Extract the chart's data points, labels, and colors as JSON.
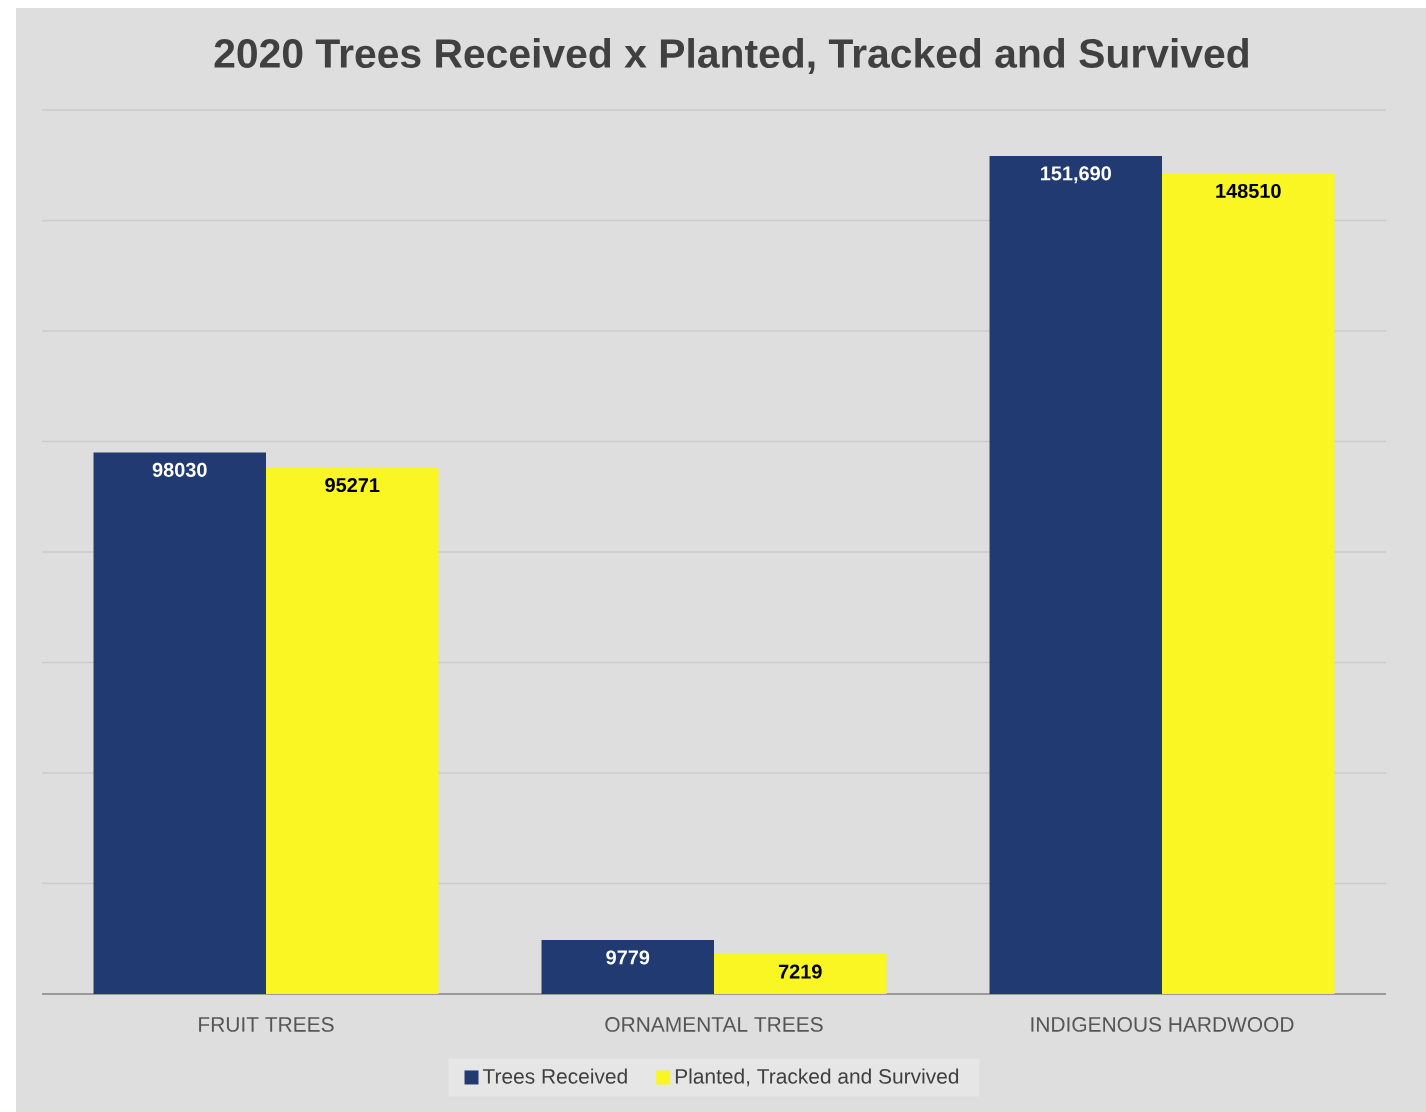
{
  "chart_data": {
    "type": "bar",
    "title": "2020 Trees Received x Planted, Tracked and Survived",
    "categories": [
      "FRUIT TREES",
      "ORNAMENTAL TREES",
      "INDIGENOUS HARDWOOD"
    ],
    "series": [
      {
        "name": "Trees Received",
        "color": "#213b72",
        "values": [
          98030,
          9779,
          151690
        ],
        "value_labels": [
          "98030",
          "9779",
          "151,690"
        ]
      },
      {
        "name": "Planted, Tracked and Survived",
        "color": "#f9f623",
        "values": [
          95271,
          7219,
          148510
        ],
        "value_labels": [
          "95271",
          "7219",
          "148510"
        ]
      }
    ],
    "ylim": [
      0,
      160000
    ],
    "yticks": [
      {
        "value": 0,
        "label": null
      },
      {
        "value": 20000,
        "label": null
      },
      {
        "value": 40000,
        "label": null
      },
      {
        "value": 60000,
        "label": null
      },
      {
        "value": 80000,
        "label": null
      },
      {
        "value": 100000,
        "label": null
      },
      {
        "value": 120000,
        "label": null
      },
      {
        "value": 140000,
        "label": null
      },
      {
        "value": 160000,
        "label": null
      }
    ],
    "grid": "y",
    "legend": "bottom"
  }
}
